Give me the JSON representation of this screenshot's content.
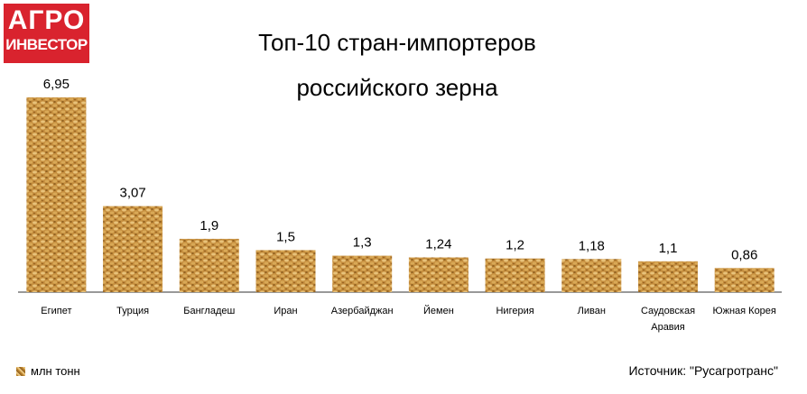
{
  "logo": {
    "line1": "АГРО",
    "line2": "ИНВЕСТОР"
  },
  "title": {
    "line1": "Топ-10 стран-импортеров",
    "line2": "российского зерна"
  },
  "legend": {
    "label": "млн тонн"
  },
  "source": "Источник: \"Русагротранс\"",
  "colors": {
    "logo_bg": "#d9232e",
    "bar_light": "#e8c27a",
    "bar_mid": "#c68f3f",
    "bar_dark": "#8a5a1c"
  },
  "chart_data": {
    "type": "bar",
    "title": "Топ-10 стран-импортеров российского зерна",
    "categories": [
      "Египет",
      "Турция",
      "Бангладеш",
      "Иран",
      "Азербайджан",
      "Йемен",
      "Нигерия",
      "Ливан",
      "Саудовская Аравия",
      "Южная Корея"
    ],
    "category_lines": [
      [
        "Египет"
      ],
      [
        "Турция"
      ],
      [
        "Бангладеш"
      ],
      [
        "Иран"
      ],
      [
        "Азербайджан"
      ],
      [
        "Йемен"
      ],
      [
        "Нигерия"
      ],
      [
        "Ливан"
      ],
      [
        "Саудовская",
        "Аравия"
      ],
      [
        "Южная Корея"
      ]
    ],
    "values": [
      6.95,
      3.07,
      1.9,
      1.5,
      1.3,
      1.24,
      1.2,
      1.18,
      1.1,
      0.86
    ],
    "value_labels": [
      "6,95",
      "3,07",
      "1,9",
      "1,5",
      "1,3",
      "1,24",
      "1,2",
      "1,18",
      "1,1",
      "0,86"
    ],
    "series": [
      {
        "name": "млн тонн",
        "values": [
          6.95,
          3.07,
          1.9,
          1.5,
          1.3,
          1.24,
          1.2,
          1.18,
          1.1,
          0.86
        ]
      }
    ],
    "ylim": [
      0,
      6.95
    ],
    "grid": false,
    "legend": "bottom-left"
  }
}
